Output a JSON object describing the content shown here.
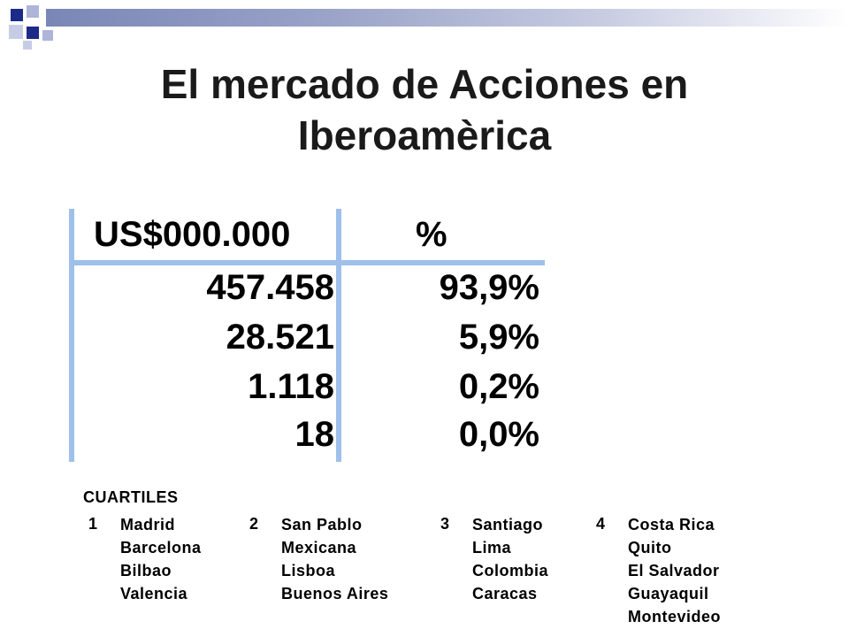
{
  "slide": {
    "title_line1": "El mercado de Acciones en",
    "title_line2": "Iberoamèrica"
  },
  "table": {
    "headers": [
      "US$000.000",
      "%"
    ],
    "rows": [
      {
        "value": "457.458",
        "pct": "93,9%"
      },
      {
        "value": "28.521",
        "pct": "5,9%"
      },
      {
        "value": "1.118",
        "pct": "0,2%"
      },
      {
        "value": "18",
        "pct": "0,0%"
      }
    ]
  },
  "cuartiles": {
    "title": "CUARTILES",
    "groups": [
      {
        "number": "1",
        "items": [
          "Madrid",
          "Barcelona",
          "Bilbao",
          "Valencia"
        ]
      },
      {
        "number": "2",
        "items": [
          "San Pablo",
          "Mexicana",
          "Lisboa",
          "Buenos Aires"
        ]
      },
      {
        "number": "3",
        "items": [
          "Santiago",
          "Lima",
          "Colombia",
          "Caracas"
        ]
      },
      {
        "number": "4",
        "items": [
          "Costa Rica",
          "Quito",
          "El Salvador",
          "Guayaquil",
          "Montevideo"
        ]
      }
    ]
  },
  "colors": {
    "rule": "#9ec0ea",
    "deco_dark": "#1c2a8a",
    "deco_light": "#9aa3c8"
  }
}
